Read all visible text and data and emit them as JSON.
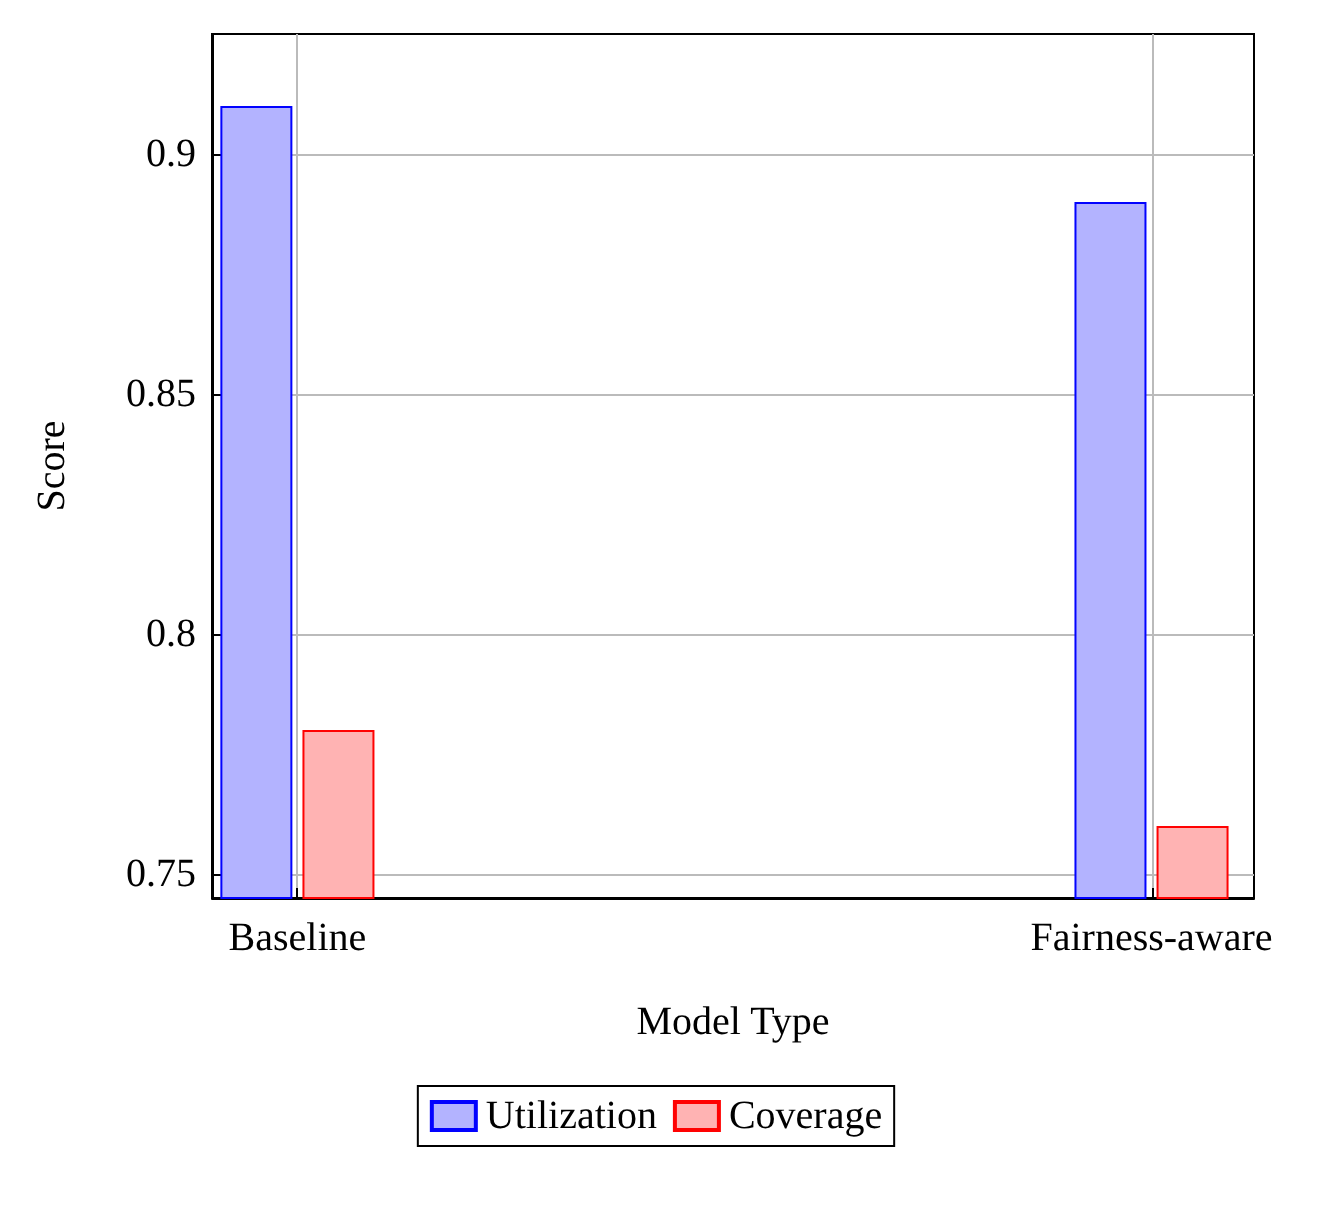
{
  "chart_data": {
    "type": "bar",
    "categories": [
      "Baseline",
      "Fairness-aware"
    ],
    "series": [
      {
        "name": "Utilization",
        "color": "#b3b3ff",
        "values": [
          0.91,
          0.89
        ]
      },
      {
        "name": "Coverage",
        "color": "#ffb3b3",
        "values": [
          0.78,
          0.76
        ]
      }
    ],
    "xlabel": "Model Type",
    "ylabel": "Score",
    "ylim": [
      0.745,
      0.925
    ],
    "yticks": [
      0.75,
      0.8,
      0.85,
      0.9
    ],
    "grid": true,
    "legend": "bottom"
  }
}
